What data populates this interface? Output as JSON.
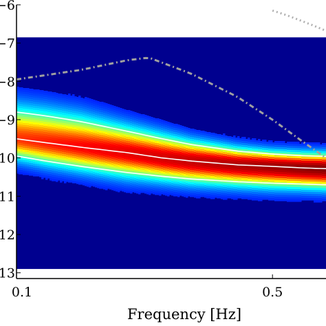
{
  "chart_data": {
    "type": "heatmap",
    "title": "",
    "xlabel": "Frequency [Hz]",
    "ylabel": "",
    "xscale": "log",
    "xlim": [
      0.1,
      0.7
    ],
    "ylim": [
      -13.15,
      -6.0
    ],
    "x_ticks": [
      {
        "value": 0.1,
        "label": "0.1"
      },
      {
        "value": 0.5,
        "label": "0.5"
      }
    ],
    "y_ticks": [
      {
        "value": -6,
        "label": "−6"
      },
      {
        "value": -7,
        "label": "−7"
      },
      {
        "value": -8,
        "label": "−8"
      },
      {
        "value": -9,
        "label": "−9"
      },
      {
        "value": -10,
        "label": "−10"
      },
      {
        "value": -11,
        "label": "−11"
      },
      {
        "value": -12,
        "label": "−12"
      },
      {
        "value": -13,
        "label": "−13"
      }
    ],
    "colormap": [
      "#00008f",
      "#0000ff",
      "#00ffff",
      "#ffff00",
      "#ff0000",
      "#800000"
    ],
    "background_color": "#ffffff",
    "density_floor": {
      "upper_edge": -6.85,
      "lower_edge": -12.9
    },
    "series": [
      {
        "role": "median",
        "color": "#ffffff",
        "style": "solid",
        "x": [
          0.1,
          0.12,
          0.15,
          0.2,
          0.25,
          0.3,
          0.4,
          0.5,
          0.6,
          0.7
        ],
        "y": [
          -9.5,
          -9.6,
          -9.72,
          -9.86,
          -10.0,
          -10.08,
          -10.18,
          -10.22,
          -10.26,
          -10.28
        ]
      },
      {
        "role": "upper-percentile",
        "color": "#ffffff",
        "style": "solid",
        "x": [
          0.1,
          0.12,
          0.15,
          0.2,
          0.25,
          0.3,
          0.4,
          0.5,
          0.6,
          0.7
        ],
        "y": [
          -8.8,
          -8.9,
          -9.05,
          -9.3,
          -9.5,
          -9.65,
          -9.82,
          -9.9,
          -9.94,
          -9.96
        ]
      },
      {
        "role": "lower-percentile",
        "color": "#ffffff",
        "style": "solid",
        "x": [
          0.1,
          0.12,
          0.15,
          0.2,
          0.25,
          0.3,
          0.4,
          0.5,
          0.6,
          0.7
        ],
        "y": [
          -9.95,
          -10.08,
          -10.22,
          -10.38,
          -10.48,
          -10.55,
          -10.62,
          -10.66,
          -10.68,
          -10.7
        ]
      },
      {
        "role": "model-curve",
        "color": "#a0a0a0",
        "style": "dash-dot",
        "x": [
          0.1,
          0.15,
          0.2,
          0.23,
          0.3,
          0.4,
          0.5,
          0.6,
          0.7
        ],
        "y": [
          -7.95,
          -7.7,
          -7.45,
          -7.38,
          -7.8,
          -8.4,
          -9.0,
          -9.55,
          -10.0
        ]
      },
      {
        "role": "upper-dotted-curve",
        "color": "#b0b0b0",
        "style": "dotted",
        "x": [
          0.5,
          0.55,
          0.6,
          0.65,
          0.7
        ],
        "y": [
          -6.15,
          -6.28,
          -6.42,
          -6.55,
          -6.68
        ]
      }
    ]
  }
}
